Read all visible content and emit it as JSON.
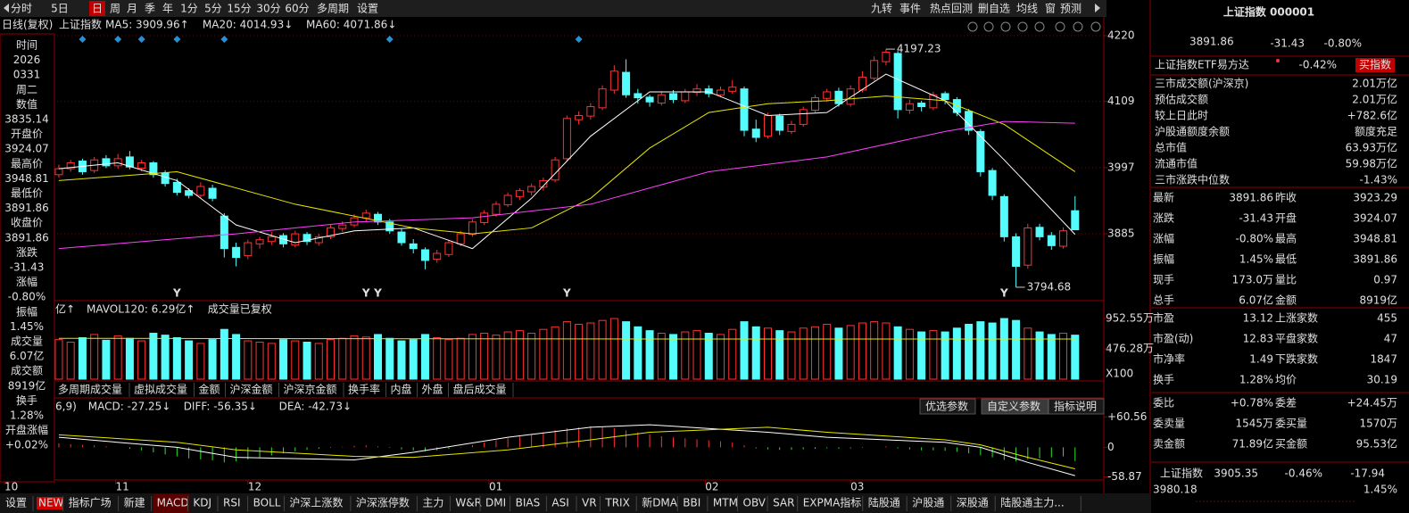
{
  "toolbar": {
    "left": [
      "分时",
      "5日",
      "日",
      "周",
      "月",
      "季",
      "年",
      "1分",
      "5分",
      "15分",
      "30分",
      "60分",
      "多周期",
      "设置"
    ],
    "right": [
      "九转",
      "事件",
      "热点回测",
      "删自选",
      "均线",
      "窗",
      "预测"
    ]
  },
  "chart_data": {
    "type": "candlestick",
    "title": "日线(复权)",
    "symbol": "上证指数",
    "xlim": [
      -4.98,
      87.3
    ],
    "ylim": [
      3775,
      4226
    ],
    "yticks": [
      4220,
      4109,
      3997,
      3885
    ],
    "xticks": [
      {
        "value": -4.6,
        "label": "10"
      },
      {
        "value": 4.8,
        "label": "11"
      },
      {
        "value": 16,
        "label": "12"
      },
      {
        "value": 36.4,
        "label": "01"
      },
      {
        "value": 54.7,
        "label": "02"
      },
      {
        "value": 67,
        "label": "03"
      }
    ],
    "up_color": "#ff3232",
    "down_color": "#54fcfc",
    "candles": [
      [
        3985,
        4002,
        3980,
        3995
      ],
      [
        3995,
        4010,
        3990,
        4005
      ],
      [
        4008,
        4012,
        3985,
        3990
      ],
      [
        3992,
        4015,
        3988,
        4010
      ],
      [
        4012,
        4018,
        3996,
        4000
      ],
      [
        4000,
        4020,
        3995,
        4012
      ],
      [
        4015,
        4025,
        3994,
        3998
      ],
      [
        3996,
        4010,
        3990,
        4005
      ],
      [
        4005,
        4008,
        3980,
        3985
      ],
      [
        3988,
        3992,
        3965,
        3970
      ],
      [
        3972,
        3978,
        3950,
        3955
      ],
      [
        3958,
        3962,
        3945,
        3950
      ],
      [
        3950,
        3972,
        3946,
        3965
      ],
      [
        3962,
        3968,
        3940,
        3945
      ],
      [
        3915,
        3920,
        3845,
        3860
      ],
      [
        3862,
        3870,
        3830,
        3845
      ],
      [
        3848,
        3875,
        3842,
        3870
      ],
      [
        3868,
        3880,
        3860,
        3875
      ],
      [
        3872,
        3888,
        3866,
        3880
      ],
      [
        3882,
        3886,
        3862,
        3868
      ],
      [
        3866,
        3890,
        3862,
        3885
      ],
      [
        3884,
        3888,
        3866,
        3872
      ],
      [
        3870,
        3885,
        3865,
        3880
      ],
      [
        3880,
        3900,
        3876,
        3895
      ],
      [
        3894,
        3906,
        3888,
        3900
      ],
      [
        3900,
        3918,
        3896,
        3912
      ],
      [
        3912,
        3926,
        3905,
        3920
      ],
      [
        3918,
        3922,
        3900,
        3905
      ],
      [
        3905,
        3910,
        3885,
        3890
      ],
      [
        3888,
        3894,
        3865,
        3870
      ],
      [
        3868,
        3876,
        3852,
        3860
      ],
      [
        3858,
        3862,
        3825,
        3840
      ],
      [
        3842,
        3858,
        3836,
        3852
      ],
      [
        3850,
        3875,
        3846,
        3870
      ],
      [
        3868,
        3890,
        3864,
        3885
      ],
      [
        3884,
        3910,
        3880,
        3905
      ],
      [
        3904,
        3925,
        3900,
        3920
      ],
      [
        3918,
        3940,
        3914,
        3935
      ],
      [
        3934,
        3955,
        3930,
        3950
      ],
      [
        3948,
        3962,
        3942,
        3958
      ],
      [
        3956,
        3970,
        3950,
        3965
      ],
      [
        3964,
        3980,
        3958,
        3975
      ],
      [
        3976,
        4015,
        3972,
        4010
      ],
      [
        4012,
        4085,
        4008,
        4080
      ],
      [
        4078,
        4092,
        4070,
        4085
      ],
      [
        4084,
        4106,
        4078,
        4100
      ],
      [
        4098,
        4136,
        4094,
        4130
      ],
      [
        4128,
        4170,
        4122,
        4160
      ],
      [
        4158,
        4180,
        4115,
        4120
      ],
      [
        4122,
        4130,
        4105,
        4115
      ],
      [
        4116,
        4120,
        4100,
        4108
      ],
      [
        4106,
        4126,
        4102,
        4120
      ],
      [
        4122,
        4128,
        4106,
        4112
      ],
      [
        4110,
        4130,
        4106,
        4125
      ],
      [
        4124,
        4138,
        4118,
        4130
      ],
      [
        4130,
        4136,
        4116,
        4122
      ],
      [
        4120,
        4134,
        4116,
        4128
      ],
      [
        4126,
        4145,
        4122,
        4133
      ],
      [
        4130,
        4134,
        4050,
        4060
      ],
      [
        4062,
        4078,
        4040,
        4048
      ],
      [
        4050,
        4090,
        4046,
        4085
      ],
      [
        4084,
        4088,
        4052,
        4060
      ],
      [
        4058,
        4076,
        4054,
        4070
      ],
      [
        4070,
        4100,
        4066,
        4095
      ],
      [
        4094,
        4120,
        4090,
        4115
      ],
      [
        4114,
        4130,
        4108,
        4125
      ],
      [
        4126,
        4132,
        4100,
        4105
      ],
      [
        4104,
        4136,
        4100,
        4130
      ],
      [
        4128,
        4160,
        4124,
        4150
      ],
      [
        4148,
        4185,
        4144,
        4178
      ],
      [
        4176,
        4197.23,
        4170,
        4192
      ],
      [
        4190,
        4194,
        4080,
        4095
      ],
      [
        4094,
        4112,
        4088,
        4105
      ],
      [
        4106,
        4110,
        4092,
        4100
      ],
      [
        4098,
        4125,
        4094,
        4120
      ],
      [
        4122,
        4126,
        4104,
        4112
      ],
      [
        4112,
        4116,
        4084,
        4090
      ],
      [
        4092,
        4096,
        4052,
        4060
      ],
      [
        4058,
        4062,
        3982,
        3990
      ],
      [
        3992,
        3996,
        3942,
        3950
      ],
      [
        3948,
        3952,
        3872,
        3880
      ],
      [
        3880,
        3886,
        3794.68,
        3830
      ],
      [
        3832,
        3902,
        3826,
        3895
      ],
      [
        3896,
        3902,
        3874,
        3880
      ],
      [
        3882,
        3888,
        3858,
        3865
      ],
      [
        3864,
        3896,
        3860,
        3890
      ],
      [
        3924.07,
        3948.81,
        3891.86,
        3891.86
      ]
    ],
    "lines": [
      {
        "name": "MA5: 3909.96↑",
        "color": "#ffffff",
        "x": [
          0,
          5,
          10,
          15,
          20,
          25,
          30,
          35,
          40,
          45,
          50,
          55,
          60,
          65,
          70,
          75,
          80,
          86
        ],
        "values": [
          3995,
          4005,
          3975,
          3900,
          3870,
          3890,
          3895,
          3860,
          3945,
          4050,
          4125,
          4125,
          4085,
          4090,
          4155,
          4110,
          4010,
          3884
        ]
      },
      {
        "name": "MA20: 4014.93↓",
        "color": "#e8e800",
        "x": [
          0,
          10,
          20,
          30,
          35,
          40,
          45,
          50,
          55,
          60,
          65,
          70,
          75,
          80,
          86
        ],
        "values": [
          3975,
          3990,
          3935,
          3895,
          3885,
          3895,
          3945,
          4030,
          4090,
          4105,
          4110,
          4118,
          4110,
          4070,
          3990
        ]
      },
      {
        "name": "MA60: 4071.86↓",
        "color": "#ff40ff",
        "x": [
          0,
          15,
          25,
          35,
          45,
          55,
          65,
          75,
          80,
          86
        ],
        "values": [
          3860,
          3885,
          3905,
          3912,
          3935,
          3990,
          4015,
          4058,
          4075,
          4072
        ]
      }
    ],
    "extremes": [
      {
        "x": 70,
        "value": 4197.23
      },
      {
        "x": 81,
        "value": 3794.68
      }
    ],
    "signal_label": "Y",
    "signals": [
      10,
      26,
      27,
      43,
      80
    ],
    "markers": [
      2,
      5,
      7,
      10,
      14,
      28,
      44
    ],
    "volume": {
      "prefix": "亿↑",
      "note": "成交量已复权",
      "unit": "X100",
      "ylim": [
        0,
        1160
      ],
      "yticks": [
        {
          "value": 952.55,
          "label": "952.55万"
        },
        {
          "value": 476.28,
          "label": "476.28万"
        }
      ],
      "values": [
        620,
        580,
        650,
        700,
        610,
        680,
        640,
        600,
        720,
        690,
        650,
        600,
        560,
        620,
        780,
        700,
        600,
        580,
        560,
        620,
        600,
        580,
        560,
        620,
        640,
        680,
        660,
        700,
        640,
        600,
        620,
        700,
        650,
        620,
        640,
        700,
        720,
        690,
        740,
        760,
        720,
        780,
        820,
        900,
        860,
        880,
        920,
        950,
        900,
        820,
        760,
        720,
        700,
        740,
        760,
        720,
        700,
        780,
        900,
        820,
        800,
        760,
        740,
        800,
        820,
        860,
        800,
        840,
        880,
        900,
        880,
        820,
        780,
        740,
        760,
        740,
        800,
        860,
        900,
        880,
        950,
        920,
        800,
        740,
        700,
        720,
        690
      ],
      "lines": [
        {
          "name": "MAVOL120: 6.29亿↑",
          "color": "#e8e800",
          "x": [
            0,
            43,
            86
          ],
          "values": [
            640,
            630,
            629
          ]
        }
      ]
    },
    "macd": {
      "prefix": "6,9)",
      "hist_name": "MACD: -27.25↓",
      "ylim": [
        -65,
        70
      ],
      "yticks": [
        {
          "value": 60.56,
          "label": "+60.56"
        },
        0,
        -58.87
      ],
      "values": [
        8,
        6,
        5,
        4,
        2,
        0,
        -3,
        -6,
        -10,
        -14,
        -18,
        -22,
        -24,
        -26,
        -30,
        -28,
        -24,
        -20,
        -16,
        -12,
        -8,
        -5,
        -3,
        -1,
        1,
        3,
        4,
        2,
        -1,
        -4,
        -6,
        -8,
        -6,
        -3,
        1,
        5,
        10,
        14,
        18,
        22,
        26,
        30,
        34,
        38,
        40,
        42,
        40,
        38,
        34,
        30,
        26,
        22,
        20,
        18,
        16,
        14,
        12,
        10,
        4,
        -2,
        -4,
        -5,
        -5,
        -4,
        -3,
        -2,
        -3,
        -2,
        -1,
        0,
        2,
        -2,
        -4,
        -6,
        -6,
        -7,
        -9,
        -12,
        -16,
        -20,
        -25,
        -28,
        -24,
        -22,
        -20,
        -18,
        -27.25
      ],
      "lines": [
        {
          "name": "DIFF: -56.35↓",
          "color": "#ffffff",
          "x": [
            0,
            10,
            15,
            25,
            30,
            38,
            45,
            50,
            60,
            65,
            75,
            78,
            82,
            86
          ],
          "values": [
            20,
            0,
            -20,
            -25,
            -10,
            20,
            40,
            45,
            30,
            20,
            10,
            0,
            -30,
            -56.35
          ]
        },
        {
          "name": "DEA: -42.73↓",
          "color": "#e8e800",
          "x": [
            0,
            10,
            15,
            25,
            30,
            38,
            45,
            50,
            60,
            65,
            75,
            78,
            82,
            86
          ],
          "values": [
            25,
            10,
            -5,
            -18,
            -20,
            -5,
            15,
            30,
            40,
            30,
            15,
            5,
            -20,
            -42.73
          ]
        }
      ],
      "buttons": [
        "优选参数",
        "自定义参数",
        "指标说明"
      ]
    }
  },
  "volume_tabs": [
    "多周期成交量",
    "虚拟成交量",
    "金额",
    "沪深金额",
    "沪深京金额",
    "换手率",
    "内盘",
    "外盘",
    "盘后成交量"
  ],
  "indicator_bar": [
    "设置",
    "NEW",
    "指标广场",
    "新建",
    "MACD",
    "KDJ",
    "RSI",
    "BOLL",
    "沪深上涨数",
    "沪深涨停数",
    "主力",
    "W&R",
    "DMI",
    "BIAS",
    "ASI",
    "VR",
    "TRIX",
    "新DMA",
    "BBI",
    "MTM",
    "OBV",
    "SAR",
    "EXPMA指标",
    "陆股通",
    "沪股通",
    "深股通",
    "陆股通主力..."
  ],
  "info_panel": [
    {
      "label": "时间",
      "lines": [
        "2026",
        "0331",
        "周二"
      ],
      "color": "#d0d0d0"
    },
    {
      "label": "数值",
      "lines": [
        "3835.14"
      ],
      "color": "#ff4040"
    },
    {
      "label": "开盘价",
      "lines": [
        "3924.07"
      ],
      "color": "#ff4040"
    },
    {
      "label": "最高价",
      "lines": [
        "3948.81"
      ],
      "color": "#ff4040"
    },
    {
      "label": "最低价",
      "lines": [
        "3891.86"
      ],
      "color": "#30e030"
    },
    {
      "label": "收盘价",
      "lines": [
        "3891.86"
      ],
      "color": "#30e030"
    },
    {
      "label": "涨跌",
      "lines": [
        "-31.43"
      ],
      "color": "#30e030"
    },
    {
      "label": "涨幅",
      "lines": [
        "-0.80%"
      ],
      "color": "#30e030"
    },
    {
      "label": "振幅",
      "lines": [
        "1.45%"
      ],
      "color": "#54fcfc"
    },
    {
      "label": "成交量",
      "lines": [
        "6.07亿"
      ],
      "color": "#54fcfc"
    },
    {
      "label": "成交额",
      "lines": [
        "8919亿"
      ],
      "color": "#54fcfc"
    },
    {
      "label": "换手",
      "lines": [
        "1.28%"
      ],
      "color": "#54fcfc"
    },
    {
      "label": "开盘涨幅",
      "lines": [
        "+0.02%"
      ],
      "color": "#ff4040"
    }
  ],
  "quote_panel": {
    "title": "上证指数 000001",
    "price": "3891.86",
    "change": "-31.43",
    "change_pct": "-0.80%",
    "etf": {
      "name": "上证指数ETF易方达",
      "change": "-0.42%",
      "button": "买指数"
    },
    "stats": [
      {
        "label": "三市成交额(沪深京)",
        "value": "2.01万亿",
        "color": "#54fcfc"
      },
      {
        "label": "预估成交额",
        "value": "2.01万亿",
        "color": "#54fcfc"
      },
      {
        "label": "较上日此时",
        "value": "+782.6亿",
        "color": "#ff4040"
      },
      {
        "label": "沪股通额度余额",
        "value": "额度充足",
        "color": "#54fcfc"
      },
      {
        "label": "总市值",
        "value": "63.93万亿",
        "color": "#54fcfc"
      },
      {
        "label": "流通市值",
        "value": "59.98万亿",
        "color": "#54fcfc"
      },
      {
        "label": "三市涨跌中位数",
        "value": "-1.43%",
        "color": "#30e030"
      }
    ],
    "groups": [
      [
        {
          "cells": [
            "最新",
            "3891.86",
            "昨收",
            "3923.29"
          ],
          "colors": [
            "#30e030",
            "#ffffff"
          ]
        },
        {
          "cells": [
            "涨跌",
            "-31.43",
            "开盘",
            "3924.07"
          ],
          "colors": [
            "#30e030",
            "#ff4040"
          ]
        },
        {
          "cells": [
            "涨幅",
            "-0.80%",
            "最高",
            "3948.81"
          ],
          "colors": [
            "#30e030",
            "#ff4040"
          ]
        },
        {
          "cells": [
            "振幅",
            "1.45%",
            "最低",
            "3891.86"
          ],
          "colors": [
            "#54fcfc",
            "#30e030"
          ]
        },
        {
          "cells": [
            "现手",
            "173.0万",
            "量比",
            "0.97"
          ],
          "colors": [
            "#ffff40",
            "#ffff40"
          ]
        },
        {
          "cells": [
            "总手",
            "6.07亿",
            "金额",
            "8919亿"
          ],
          "colors": [
            "#ffff40",
            "#54fcfc"
          ]
        }
      ],
      [
        {
          "cells": [
            "市盈",
            "13.12",
            "上涨家数",
            "455"
          ],
          "colors": [
            "#ffffff",
            "#ff4040"
          ]
        },
        {
          "cells": [
            "市盈(动)",
            "12.83",
            "平盘家数",
            "47"
          ],
          "colors": [
            "#ffffff",
            "#ffffff"
          ]
        },
        {
          "cells": [
            "市净率",
            "1.49",
            "下跌家数",
            "1847"
          ],
          "colors": [
            "#ffffff",
            "#30e030"
          ]
        },
        {
          "cells": [
            "换手",
            "1.28%",
            "均价",
            "30.19"
          ],
          "colors": [
            "#54fcfc",
            "#ffff40"
          ]
        }
      ],
      [
        {
          "cells": [
            "委比",
            "+0.78%",
            "委差",
            "+24.45万"
          ],
          "colors": [
            "#ff4040",
            "#ff4040"
          ]
        },
        {
          "cells": [
            "委卖量",
            "1545万",
            "委买量",
            "1570万"
          ],
          "colors": [
            "#ffff40",
            "#ffff40"
          ]
        },
        {
          "cells": [
            "卖金额",
            "71.89亿",
            "买金额",
            "95.53亿"
          ],
          "colors": [
            "#ffff40",
            "#ffff40"
          ]
        }
      ]
    ],
    "ticker": {
      "name": "上证指数",
      "price": "3905.35",
      "pct": "-0.46%",
      "change": "-17.94"
    },
    "mini": {
      "high": "3980.18",
      "amp": "1.45%"
    }
  }
}
